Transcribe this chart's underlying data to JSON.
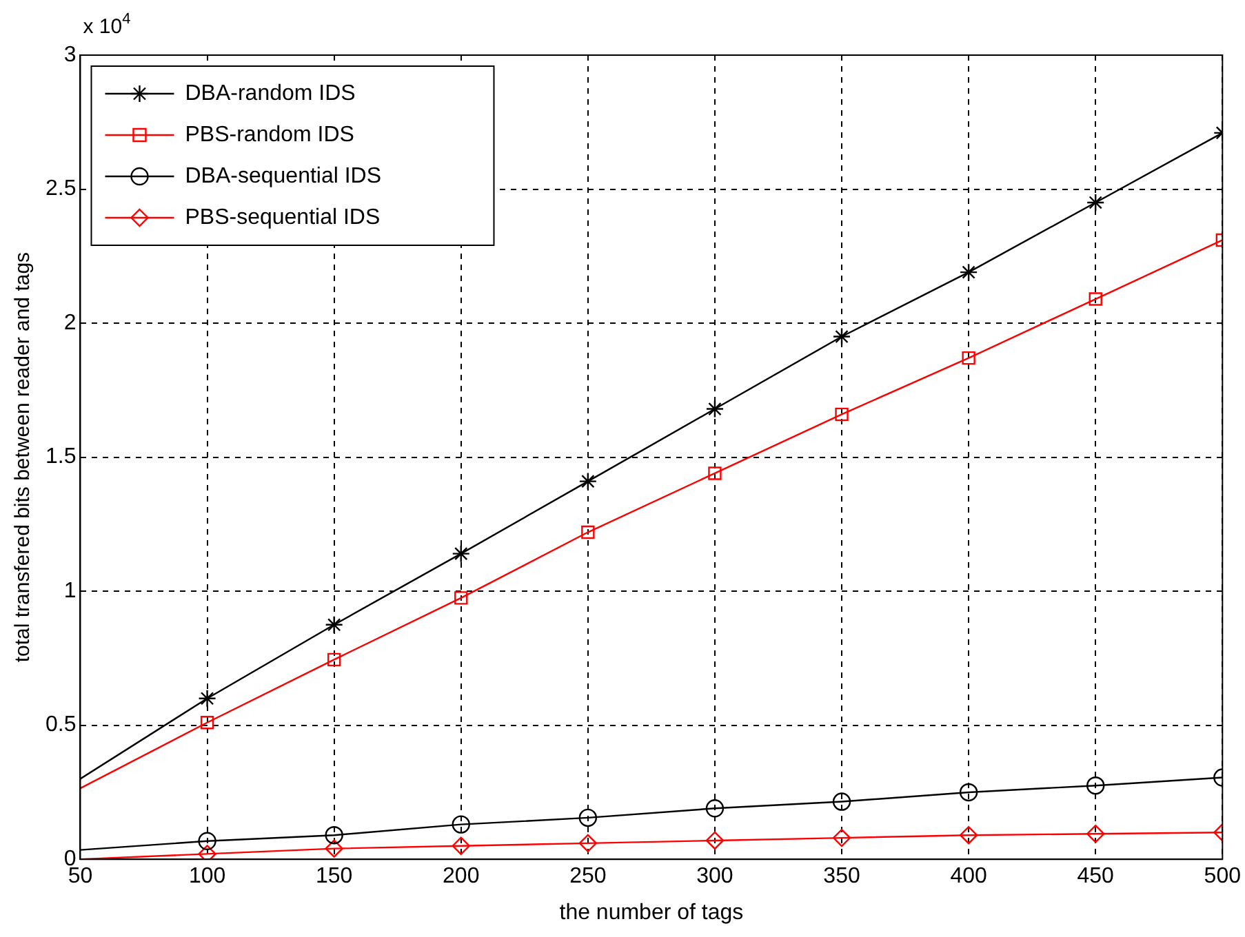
{
  "chart_data": {
    "type": "line",
    "xlabel": "the number of tags",
    "ylabel": "total transfered bits between reader and tags",
    "annotations": [
      "x 10$^{4}$"
    ],
    "x": [
      50,
      100,
      150,
      200,
      250,
      300,
      350,
      400,
      450,
      500
    ],
    "series": [
      {
        "name": "DBA-random IDS",
        "color": "#000000",
        "marker": "cross",
        "values": [
          0.3,
          0.6,
          0.875,
          1.14,
          1.41,
          1.68,
          1.95,
          2.19,
          2.45,
          2.71
        ]
      },
      {
        "name": "PBS-random IDS",
        "color": "#ff0000",
        "marker": "square",
        "values": [
          0.265,
          0.51,
          0.745,
          0.975,
          1.22,
          1.44,
          1.66,
          1.87,
          2.09,
          2.31
        ]
      },
      {
        "name": "DBA-sequential IDS",
        "color": "#000000",
        "marker": "circle",
        "values": [
          0.035,
          0.068,
          0.09,
          0.13,
          0.155,
          0.19,
          0.215,
          0.25,
          0.275,
          0.305
        ]
      },
      {
        "name": "PBS-sequential IDS",
        "color": "#ff0000",
        "marker": "diamond",
        "values": [
          0.0,
          0.02,
          0.04,
          0.05,
          0.06,
          0.07,
          0.08,
          0.09,
          0.095,
          0.1
        ]
      }
    ],
    "xlim": [
      50,
      500
    ],
    "xticks": [
      50,
      100,
      150,
      200,
      250,
      300,
      350,
      400,
      450,
      500
    ],
    "ylim": [
      0,
      3
    ],
    "yticks": [
      0,
      0.5,
      1,
      1.5,
      2,
      2.5,
      3
    ],
    "grid": true,
    "legend": "top left",
    "line_style": "solid"
  }
}
